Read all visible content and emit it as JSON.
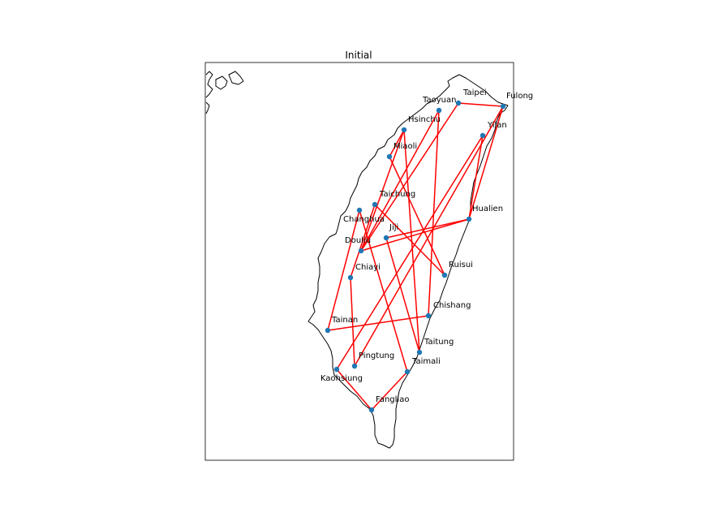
{
  "title": "Initial",
  "colors": {
    "route": "#ff0000",
    "city": "#1f77b4",
    "coast": "#000000",
    "frame": "#000000"
  },
  "cities": [
    {
      "name": "Taipei"
    },
    {
      "name": "Fulong"
    },
    {
      "name": "Taoyuan"
    },
    {
      "name": "Hsinchu"
    },
    {
      "name": "Yilan"
    },
    {
      "name": "Miaoli"
    },
    {
      "name": "Taichung"
    },
    {
      "name": "Changhua"
    },
    {
      "name": "Hualien"
    },
    {
      "name": "Jiji"
    },
    {
      "name": "Douliu"
    },
    {
      "name": "Ruisui"
    },
    {
      "name": "Chiayi"
    },
    {
      "name": "Chishang"
    },
    {
      "name": "Tainan"
    },
    {
      "name": "Taitung"
    },
    {
      "name": "Pingtung"
    },
    {
      "name": "Taimali"
    },
    {
      "name": "Kaohsiung"
    },
    {
      "name": "Fangliao"
    }
  ],
  "route_order": [
    "Fulong",
    "Taipei",
    "Douliu",
    "Taoyuan",
    "Chishang",
    "Tainan",
    "Changhua",
    "Taimali",
    "Fangliao",
    "Kaohsiung",
    "Yilan",
    "Hualien",
    "Douliu",
    "Hsinchu",
    "Taitung",
    "Jiji",
    "Hualien",
    "Fulong",
    "Pingtung",
    "Chiayi",
    "Taichung",
    "Ruisui",
    "Miaoli",
    "Hsinchu"
  ]
}
